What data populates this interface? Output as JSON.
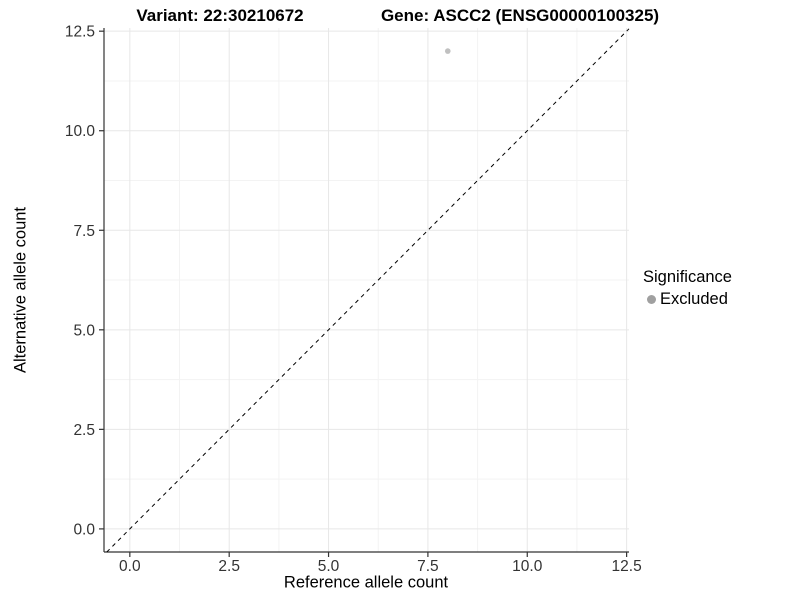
{
  "titles": {
    "variant": "Variant: 22:30210672",
    "gene": "Gene: ASCC2 (ENSG00000100325)"
  },
  "legend": {
    "title": "Significance",
    "items": [
      {
        "label": "Excluded",
        "color": "#a0a0a0",
        "marker": "circle"
      }
    ]
  },
  "chart_data": {
    "type": "scatter",
    "title": "Variant: 22:30210672 | Gene: ASCC2 (ENSG00000100325)",
    "xlabel": "Reference allele count",
    "ylabel": "Alternative allele count",
    "xlim": [
      -0.65,
      12.56
    ],
    "ylim": [
      -0.58,
      12.58
    ],
    "xticks": [
      0.0,
      2.5,
      5.0,
      7.5,
      10.0,
      12.5
    ],
    "yticks": [
      0.0,
      2.5,
      5.0,
      7.5,
      10.0,
      12.5
    ],
    "xtick_labels": [
      "0.0",
      "2.5",
      "5.0",
      "7.5",
      "10.0",
      "12.5"
    ],
    "ytick_labels": [
      "0.0",
      "2.5",
      "5.0",
      "7.5",
      "10.0",
      "12.5"
    ],
    "grid": true,
    "legend_position": "right",
    "series": [
      {
        "name": "Excluded",
        "color": "#c0c0c0",
        "point_radius": 2.8,
        "points": [
          {
            "x": 8,
            "y": 12
          }
        ]
      }
    ],
    "identity_line": {
      "style": "dashed",
      "color": "#000000",
      "from": -0.58,
      "to": 12.56
    },
    "colors": {
      "grid_major": "#e7e7e7",
      "grid_minor": "#f3f3f3",
      "axis_line": "#333333",
      "tick_mark": "#333333",
      "tick_text": "#333333"
    }
  }
}
